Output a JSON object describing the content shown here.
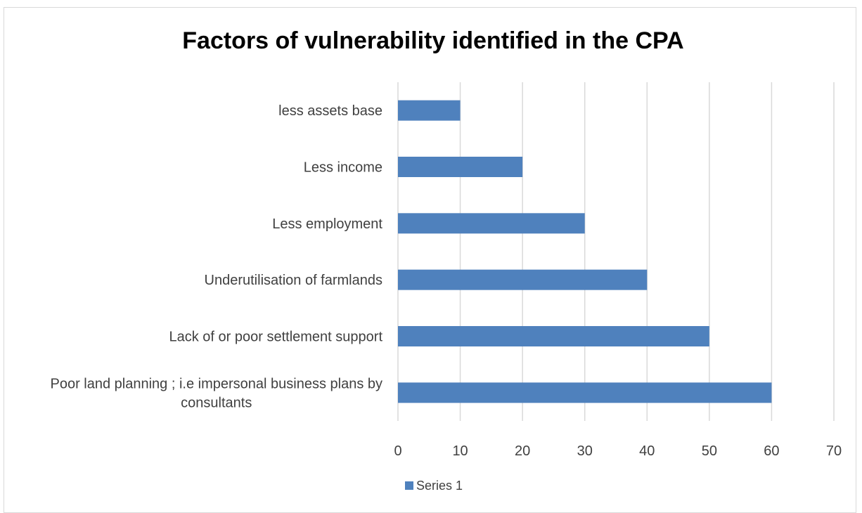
{
  "chart_data": {
    "type": "bar",
    "orientation": "horizontal",
    "title": "Factors of vulnerability identified in the CPA",
    "xlabel": "",
    "ylabel": "",
    "categories": [
      "less assets base",
      "Less income",
      "Less employment",
      "Underutilisation of farmlands",
      "Lack of or poor settlement support",
      "Poor land planning ;  i.e impersonal business plans by consultants"
    ],
    "category_label_lines": [
      [
        "less assets base"
      ],
      [
        "Less income"
      ],
      [
        "Less employment"
      ],
      [
        "Underutilisation of farmlands"
      ],
      [
        "Lack of or poor settlement support"
      ],
      [
        "Poor land planning ;  i.e impersonal business plans by",
        "consultants"
      ]
    ],
    "series": [
      {
        "name": "Series 1",
        "values": [
          10,
          20,
          30,
          40,
          50,
          60
        ],
        "color": "#4f81bd"
      }
    ],
    "xlim": [
      0,
      70
    ],
    "xticks": [
      0,
      10,
      20,
      30,
      40,
      50,
      60,
      70
    ],
    "grid": true,
    "gridline_color": "#d9d9d9",
    "legend": "bottom-center"
  }
}
